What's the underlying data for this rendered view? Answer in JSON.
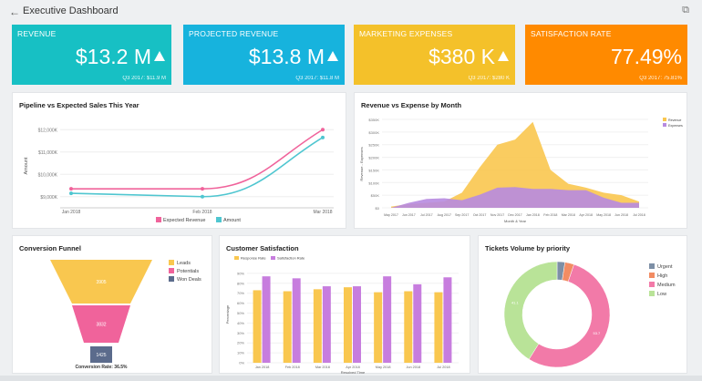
{
  "header": {
    "title": "Executive Dashboard",
    "back_icon": "arrow-left-icon",
    "external_icon": "external-link-icon"
  },
  "kpis": [
    {
      "label": "REVENUE",
      "value": "$13.2 M",
      "sub": "Q3 2017: $11.9 M",
      "color": "#17c0c4"
    },
    {
      "label": "PROJECTED REVENUE",
      "value": "$13.8 M",
      "sub": "Q3 2017: $11.8 M",
      "color": "#17b3dd"
    },
    {
      "label": "MARKETING EXPENSES",
      "value": "$380 K",
      "sub": "Q3 2017: $280 K",
      "color": "#f4c12a"
    },
    {
      "label": "SATISFACTION RATE",
      "value": "77.49%",
      "sub": "Q3 2017: 75.81%",
      "color": "#ff8a00"
    }
  ],
  "pipeline": {
    "title": "Pipeline vs Expected Sales This Year",
    "chart_data": {
      "type": "line",
      "categories": [
        "Jan 2018",
        "Feb 2018",
        "Mar 2018"
      ],
      "ylabel": "Amount",
      "yticks": [
        "$9,000K",
        "$10,000K",
        "$11,000K",
        "$12,000K"
      ],
      "ylim": [
        8500,
        12500
      ],
      "series": [
        {
          "name": "Expected Revenue",
          "values": [
            9350,
            9350,
            12000
          ],
          "color": "#f0639b"
        },
        {
          "name": "Amount",
          "values": [
            9150,
            9000,
            11650
          ],
          "color": "#4fc6d0"
        }
      ]
    }
  },
  "revexp": {
    "title": "Revenue vs Expense by Month",
    "chart_data": {
      "type": "area",
      "categories": [
        "May 2017",
        "Jun 2017",
        "Jul 2017",
        "Aug 2017",
        "Sep 2017",
        "Oct 2017",
        "Nov 2017",
        "Dec 2017",
        "Jan 2018",
        "Feb 2018",
        "Mar 2018",
        "Apr 2018",
        "May 2018",
        "Jun 2018",
        "Jul 2018"
      ],
      "xlabel": "Month & Year",
      "ylabel": "Revenue - Expenses",
      "yticks": [
        "$0",
        "$50K",
        "$100K",
        "$150K",
        "$200K",
        "$250K",
        "$300K",
        "$350K"
      ],
      "ylim": [
        0,
        350
      ],
      "series": [
        {
          "name": "Revenue",
          "values": [
            5,
            15,
            20,
            25,
            60,
            160,
            250,
            270,
            340,
            150,
            95,
            80,
            60,
            50,
            25
          ],
          "color": "#f9c74f"
        },
        {
          "name": "Expenses",
          "values": [
            0,
            20,
            35,
            38,
            30,
            52,
            80,
            82,
            75,
            75,
            70,
            70,
            40,
            20,
            20
          ],
          "color": "#b78be0"
        }
      ]
    }
  },
  "funnel": {
    "title": "Conversion Funnel",
    "footer": "Conversion Rate: 36.5%",
    "chart_data": {
      "type": "funnel",
      "categories": [
        "Leads",
        "Potentials",
        "Won Deals"
      ],
      "values": [
        3905,
        3832,
        1425
      ],
      "colors": [
        "#f9c74f",
        "#f0639b",
        "#5b6b8c"
      ]
    }
  },
  "satisfaction": {
    "title": "Customer Satisfaction",
    "chart_data": {
      "type": "bar",
      "categories": [
        "Jan 2018",
        "Feb 2018",
        "Mar 2018",
        "Apr 2018",
        "May 2018",
        "Jun 2018",
        "Jul 2018"
      ],
      "xlabel": "Resolved Time",
      "ylabel": "Percentage",
      "yticks": [
        "0%",
        "10%",
        "20%",
        "30%",
        "40%",
        "50%",
        "60%",
        "70%",
        "80%",
        "90%"
      ],
      "ylim": [
        0,
        100
      ],
      "series": [
        {
          "name": "Response Rate",
          "values": [
            73,
            72,
            74,
            76,
            71,
            72,
            71
          ],
          "color": "#f9c74f"
        },
        {
          "name": "Satisfaction Rate",
          "values": [
            87,
            85,
            77,
            77,
            87,
            79,
            86
          ],
          "color": "#c77dde"
        }
      ]
    }
  },
  "tickets": {
    "title": "Tickets Volume by priority",
    "chart_data": {
      "type": "pie",
      "categories": [
        "Urgent",
        "High",
        "Medium",
        "Low"
      ],
      "values": [
        2.4,
        2.8,
        53.7,
        41.1
      ],
      "data_labels": [
        "",
        "",
        "53.7",
        "41.1"
      ],
      "colors": [
        "#7d8fa6",
        "#f28c63",
        "#f27aa8",
        "#b9e398"
      ]
    }
  }
}
